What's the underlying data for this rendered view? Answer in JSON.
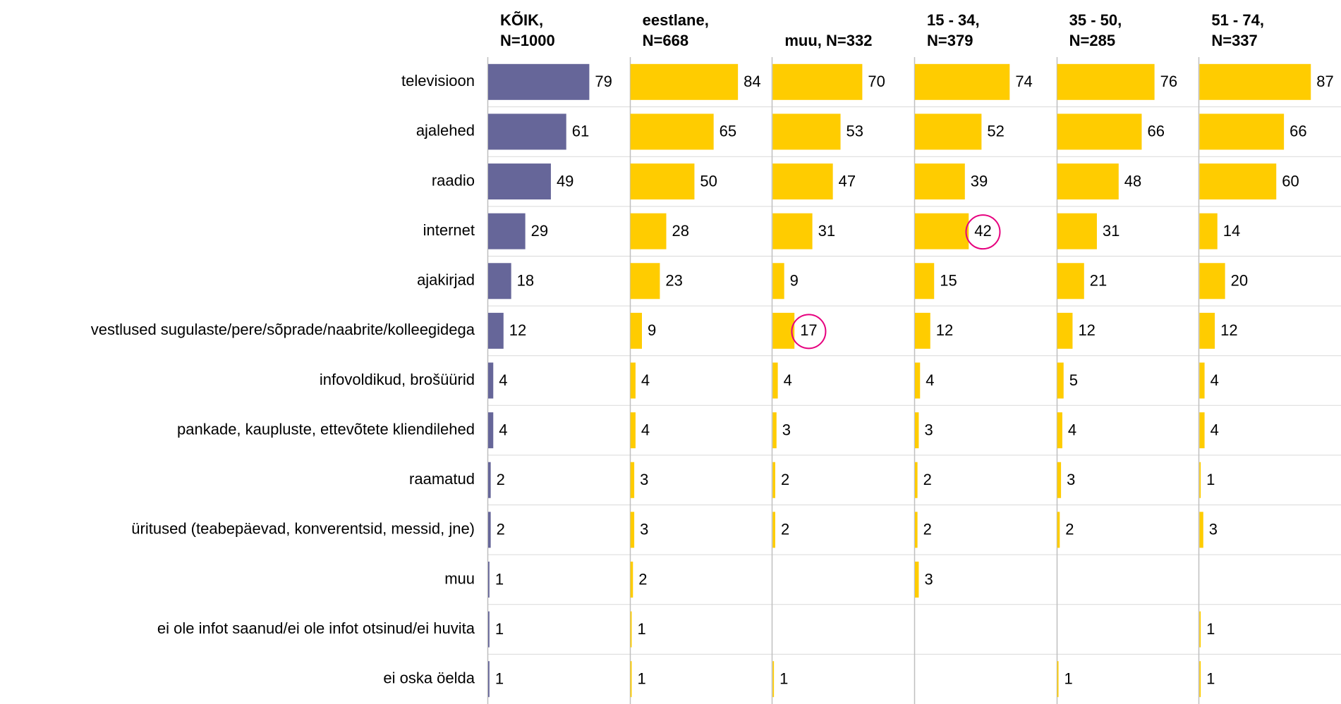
{
  "chart_data": {
    "type": "bar",
    "orientation": "horizontal",
    "categories": [
      "televisioon",
      "ajalehed",
      "raadio",
      "internet",
      "ajakirjad",
      "vestlused sugulaste/pere/sõprade/naabrite/kolleegidega",
      "infovoldikud, brošüürid",
      "pankade, kaupluste, ettevõtete kliendilehed",
      "raamatud",
      "üritused (teabepäevad, konverentsid, messid, jne)",
      "muu",
      "ei ole infot saanud/ei ole infot otsinud/ei huvita",
      "ei oska öelda"
    ],
    "xlim": [
      0,
      110
    ],
    "series": [
      {
        "name": "KÕIK,\nN=1000",
        "color": "#666699",
        "values": [
          79,
          61,
          49,
          29,
          18,
          12,
          4,
          4,
          2,
          2,
          1,
          1,
          1
        ]
      },
      {
        "name": "eestlane,\nN=668",
        "color": "#ffcc00",
        "values": [
          84,
          65,
          50,
          28,
          23,
          9,
          4,
          4,
          3,
          3,
          2,
          1,
          1
        ]
      },
      {
        "name": "muu, N=332",
        "color": "#ffcc00",
        "values": [
          70,
          53,
          47,
          31,
          9,
          17,
          4,
          3,
          2,
          2,
          null,
          null,
          1
        ],
        "highlight": [
          5
        ]
      },
      {
        "name": "15 - 34,\nN=379",
        "color": "#ffcc00",
        "values": [
          74,
          52,
          39,
          42,
          15,
          12,
          4,
          3,
          2,
          2,
          3,
          null,
          null
        ],
        "highlight": [
          3
        ]
      },
      {
        "name": "35 - 50,\nN=285",
        "color": "#ffcc00",
        "values": [
          76,
          66,
          48,
          31,
          21,
          12,
          5,
          4,
          3,
          2,
          null,
          null,
          1
        ]
      },
      {
        "name": "51 - 74,\nN=337",
        "color": "#ffcc00",
        "values": [
          87,
          66,
          60,
          14,
          20,
          12,
          4,
          4,
          1,
          3,
          null,
          1,
          1
        ]
      }
    ]
  }
}
